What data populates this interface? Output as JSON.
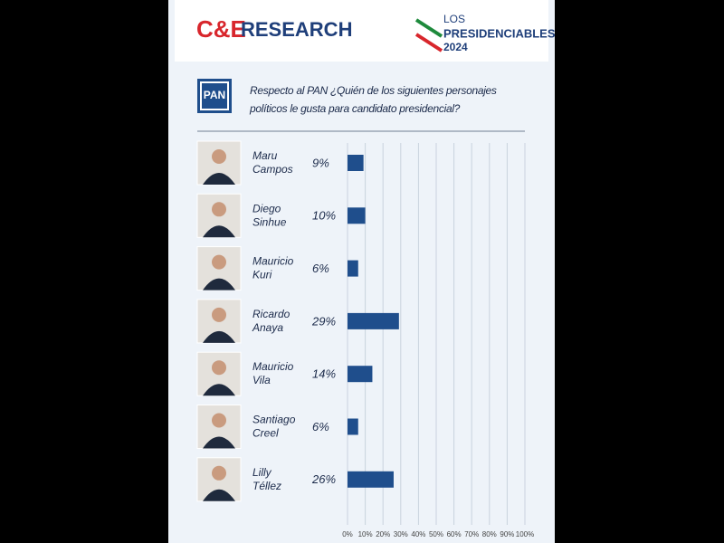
{
  "brand": {
    "part1": "C&E",
    "part2": "RESEARCH"
  },
  "event": {
    "line1": "LOS",
    "line2": "PRESIDENCIABLES",
    "line3": "2024"
  },
  "party": "PAN",
  "chart_data": {
    "type": "barh",
    "title": "Respecto al PAN ¿Quién de los siguientes personajes políticos le gusta para candidato presidencial?",
    "categories": [
      "Maru Campos",
      "Diego Sinhue",
      "Mauricio Kuri",
      "Ricardo Anaya",
      "Mauricio Vila",
      "Santiago Creel",
      "Lilly Téllez"
    ],
    "values": [
      9,
      10,
      6,
      29,
      14,
      6,
      26
    ],
    "value_labels": [
      "9%",
      "10%",
      "6%",
      "29%",
      "14%",
      "6%",
      "26%"
    ],
    "color": "#1f4e8c",
    "xlim": [
      0,
      100
    ],
    "xticks": [
      {
        "value": 0,
        "label": "0%"
      },
      {
        "value": 10,
        "label": "10%"
      },
      {
        "value": 20,
        "label": "20%"
      },
      {
        "value": 30,
        "label": "30%"
      },
      {
        "value": 40,
        "label": "40%"
      },
      {
        "value": 50,
        "label": "50%"
      },
      {
        "value": 60,
        "label": "60%"
      },
      {
        "value": 70,
        "label": "70%"
      },
      {
        "value": 80,
        "label": "80%"
      },
      {
        "value": 90,
        "label": "90%"
      },
      {
        "value": 100,
        "label": "100%"
      }
    ],
    "grid": true
  }
}
